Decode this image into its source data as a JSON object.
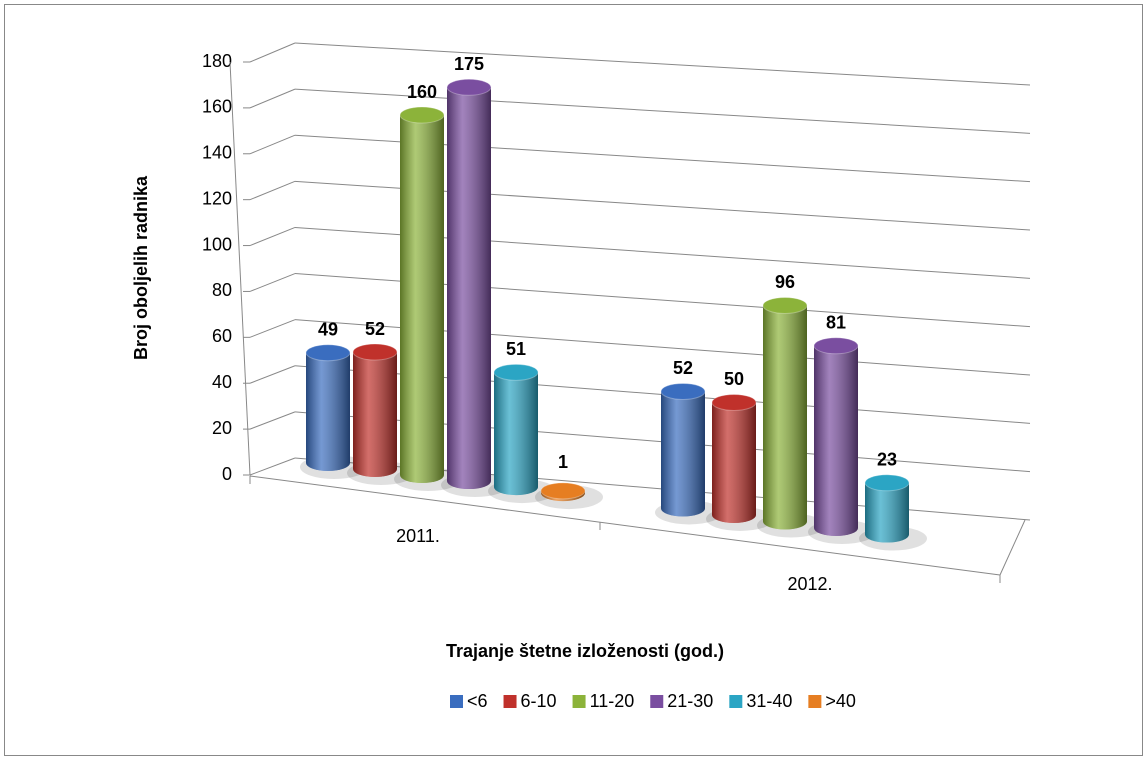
{
  "chart_data": {
    "type": "bar3d",
    "x_label": "Trajanje štetne izloženosti (god.)",
    "y_label": "Broj oboljelih radnika",
    "categories": [
      "2011.",
      "2012."
    ],
    "series": [
      {
        "name": "<6",
        "color": "#3a6dbf",
        "values": [
          49,
          52
        ]
      },
      {
        "name": "6-10",
        "color": "#c0312b",
        "values": [
          52,
          50
        ]
      },
      {
        "name": "11-20",
        "color": "#8cb33a",
        "values": [
          160,
          96
        ]
      },
      {
        "name": "21-30",
        "color": "#7a4ea0",
        "values": [
          175,
          81
        ]
      },
      {
        "name": "31-40",
        "color": "#2ba5c4",
        "values": [
          51,
          23
        ]
      },
      {
        "name": ">40",
        "color": "#e67e22",
        "values": [
          1,
          null
        ]
      }
    ],
    "ylim": [
      0,
      180
    ],
    "yticks": [
      0,
      20,
      40,
      60,
      80,
      100,
      120,
      140,
      160,
      180
    ],
    "grid": true,
    "legend": "bottom"
  }
}
